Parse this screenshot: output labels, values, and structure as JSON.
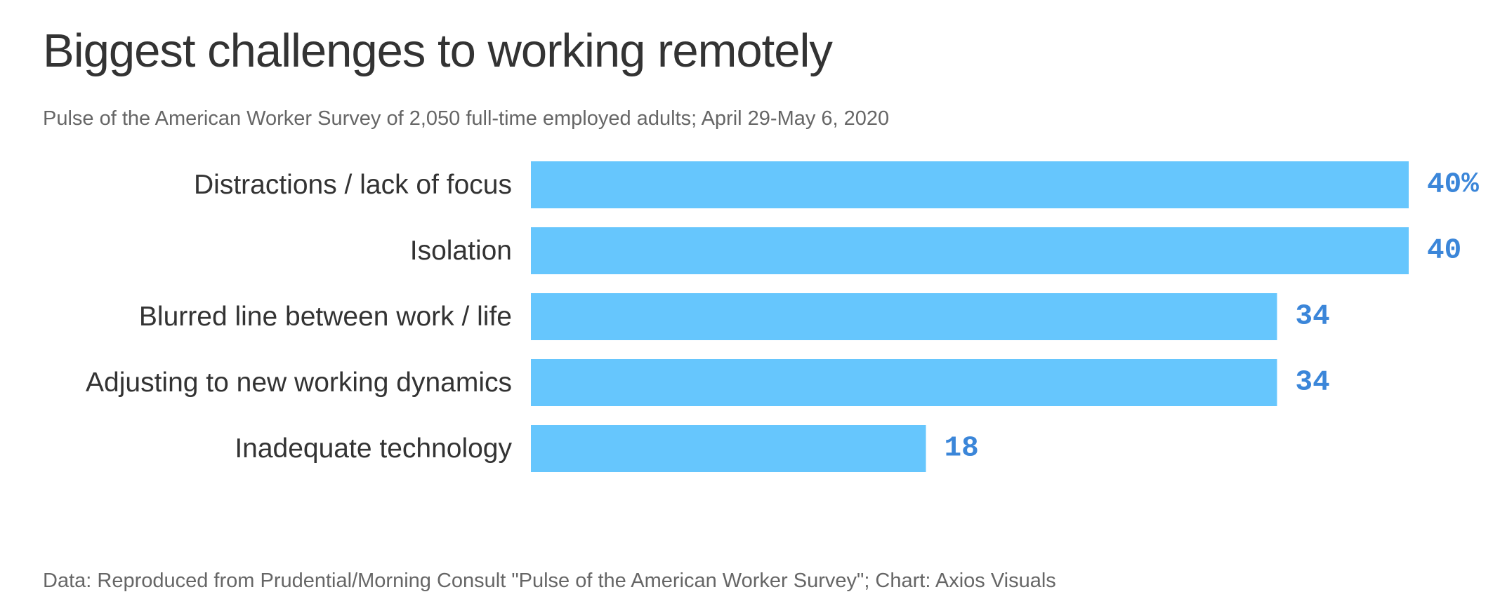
{
  "title": "Biggest challenges to working remotely",
  "subtitle": "Pulse of the American Worker Survey of 2,050 full-time employed adults; April 29-May 6, 2020",
  "footer": "Data: Reproduced from Prudential/Morning Consult \"Pulse of the American Worker Survey\"; Chart: Axios Visuals",
  "colors": {
    "bar": "#66c6fd",
    "value_label": "#3b86d9"
  },
  "chart_data": {
    "type": "bar",
    "orientation": "horizontal",
    "categories": [
      "Distractions / lack of focus",
      "Isolation",
      "Blurred line between work / life",
      "Adjusting to new working dynamics",
      "Inadequate technology"
    ],
    "values": [
      40,
      40,
      34,
      34,
      18
    ],
    "value_labels": [
      "40%",
      "40",
      "34",
      "34",
      "18"
    ],
    "unit": "%",
    "xlim": [
      0,
      40
    ],
    "grid": false,
    "legend": "none"
  }
}
